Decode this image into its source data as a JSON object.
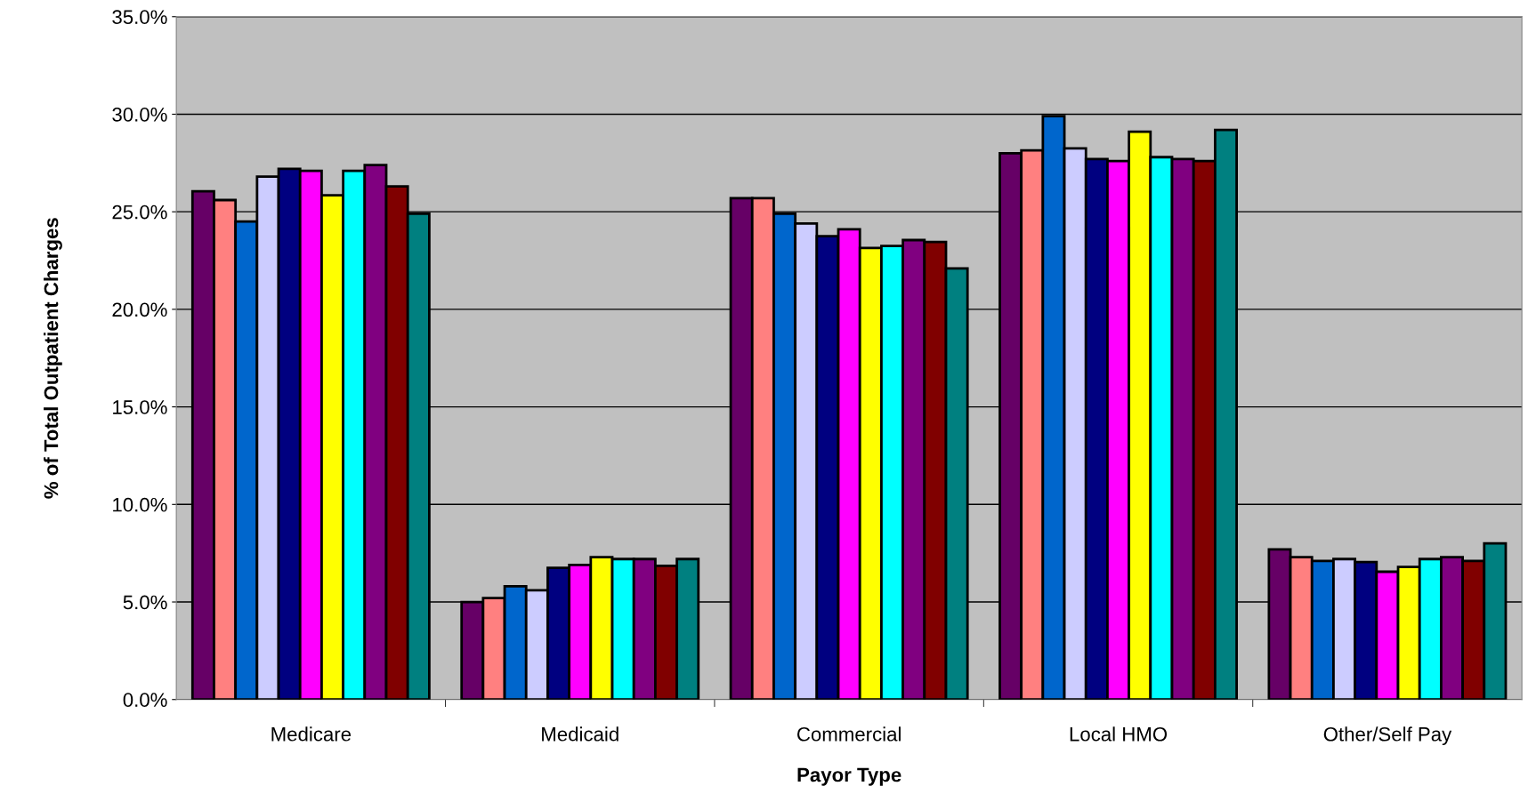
{
  "chart_data": {
    "type": "bar",
    "xlabel": "Payor Type",
    "ylabel": "% of Total Outpatient Charges",
    "categories": [
      "Medicare",
      "Medicaid",
      "Commercial",
      "Local HMO",
      "Other/Self Pay"
    ],
    "series": [
      {
        "color": "#660066",
        "values": [
          26.05,
          5.0,
          25.7,
          28.0,
          7.7
        ]
      },
      {
        "color": "#ff8080",
        "values": [
          25.6,
          5.2,
          25.7,
          28.15,
          7.3
        ]
      },
      {
        "color": "#0066cc",
        "values": [
          24.5,
          5.8,
          24.9,
          29.9,
          7.1
        ]
      },
      {
        "color": "#ccccff",
        "values": [
          26.8,
          5.6,
          24.4,
          28.25,
          7.2
        ]
      },
      {
        "color": "#000080",
        "values": [
          27.2,
          6.75,
          23.75,
          27.7,
          7.05
        ]
      },
      {
        "color": "#ff00ff",
        "values": [
          27.1,
          6.9,
          24.1,
          27.6,
          6.55
        ]
      },
      {
        "color": "#ffff00",
        "values": [
          25.85,
          7.3,
          23.15,
          29.1,
          6.8
        ]
      },
      {
        "color": "#00ffff",
        "values": [
          27.1,
          7.2,
          23.25,
          27.8,
          7.2
        ]
      },
      {
        "color": "#800080",
        "values": [
          27.4,
          7.2,
          23.55,
          27.7,
          7.3
        ]
      },
      {
        "color": "#800000",
        "values": [
          26.3,
          6.85,
          23.45,
          27.6,
          7.1
        ]
      },
      {
        "color": "#008080",
        "values": [
          24.9,
          7.2,
          22.1,
          29.2,
          8.0
        ]
      }
    ],
    "ylim": [
      0,
      35
    ],
    "yticks": [
      {
        "value": 0,
        "label": "0.0%"
      },
      {
        "value": 5,
        "label": "5.0%"
      },
      {
        "value": 10,
        "label": "10.0%"
      },
      {
        "value": 15,
        "label": "15.0%"
      },
      {
        "value": 20,
        "label": "20.0%"
      },
      {
        "value": 25,
        "label": "25.0%"
      },
      {
        "value": 30,
        "label": "30.0%"
      },
      {
        "value": 35,
        "label": "35.0%"
      }
    ],
    "grid": "y"
  }
}
